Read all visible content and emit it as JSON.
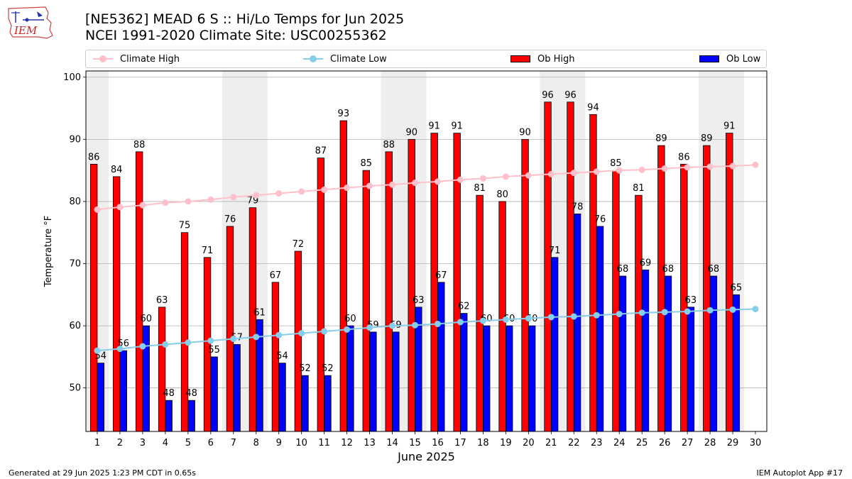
{
  "header": {
    "logo_text": "IEM",
    "title_line1": "[NE5362] MEAD 6 S :: Hi/Lo Temps for Jun 2025",
    "title_line2": "NCEI 1991-2020 Climate Site: USC00255362"
  },
  "legend": [
    {
      "label": "Climate High",
      "kind": "line",
      "color": "#FFC0CB"
    },
    {
      "label": "Climate Low",
      "kind": "line",
      "color": "#87CEEB"
    },
    {
      "label": "Ob High",
      "kind": "bar",
      "color": "#FF0000"
    },
    {
      "label": "Ob Low",
      "kind": "bar",
      "color": "#0000FF"
    }
  ],
  "footer": {
    "left": "Generated at 29 Jun 2025 1:23 PM CDT in 0.65s",
    "right": "IEM Autoplot App #17"
  },
  "chart_data": {
    "type": "bar",
    "xlabel": "June 2025",
    "ylabel": "Temperature °F",
    "ylim": [
      43,
      101
    ],
    "yticks": [
      50,
      60,
      70,
      80,
      90,
      100
    ],
    "grid": true,
    "legend_position": "top",
    "categories": [
      1,
      2,
      3,
      4,
      5,
      6,
      7,
      8,
      9,
      10,
      11,
      12,
      13,
      14,
      15,
      16,
      17,
      18,
      19,
      20,
      21,
      22,
      23,
      24,
      25,
      26,
      27,
      28,
      29,
      30
    ],
    "shaded_weekends": [
      [
        1,
        1
      ],
      [
        7,
        8
      ],
      [
        14,
        15
      ],
      [
        21,
        22
      ],
      [
        28,
        29
      ]
    ],
    "series": [
      {
        "name": "Ob High",
        "type": "bar",
        "color": "#FF0000",
        "values": [
          86,
          84,
          88,
          63,
          75,
          71,
          76,
          79,
          67,
          72,
          87,
          93,
          85,
          88,
          90,
          91,
          91,
          81,
          80,
          90,
          96,
          96,
          94,
          85,
          81,
          89,
          86,
          89,
          91,
          null
        ]
      },
      {
        "name": "Ob Low",
        "type": "bar",
        "color": "#0000FF",
        "values": [
          54,
          56,
          60,
          48,
          48,
          55,
          57,
          61,
          54,
          52,
          52,
          60,
          59,
          59,
          63,
          67,
          62,
          60,
          60,
          60,
          71,
          78,
          76,
          68,
          69,
          68,
          63,
          68,
          65,
          null
        ]
      },
      {
        "name": "Climate High",
        "type": "line",
        "color": "#FFC0CB",
        "values": [
          78.7,
          79.1,
          79.4,
          79.8,
          80.0,
          80.3,
          80.7,
          81.0,
          81.3,
          81.6,
          81.9,
          82.2,
          82.5,
          82.7,
          83.0,
          83.2,
          83.5,
          83.7,
          84.0,
          84.2,
          84.4,
          84.6,
          84.8,
          85.0,
          85.1,
          85.3,
          85.5,
          85.6,
          85.7,
          85.9
        ]
      },
      {
        "name": "Climate Low",
        "type": "line",
        "color": "#87CEEB",
        "values": [
          56.0,
          56.3,
          56.7,
          57.0,
          57.3,
          57.6,
          57.9,
          58.2,
          58.5,
          58.8,
          59.1,
          59.4,
          59.7,
          60.0,
          60.1,
          60.3,
          60.6,
          60.8,
          61.0,
          61.2,
          61.4,
          61.5,
          61.7,
          61.9,
          62.1,
          62.2,
          62.3,
          62.5,
          62.6,
          62.7
        ]
      }
    ]
  }
}
